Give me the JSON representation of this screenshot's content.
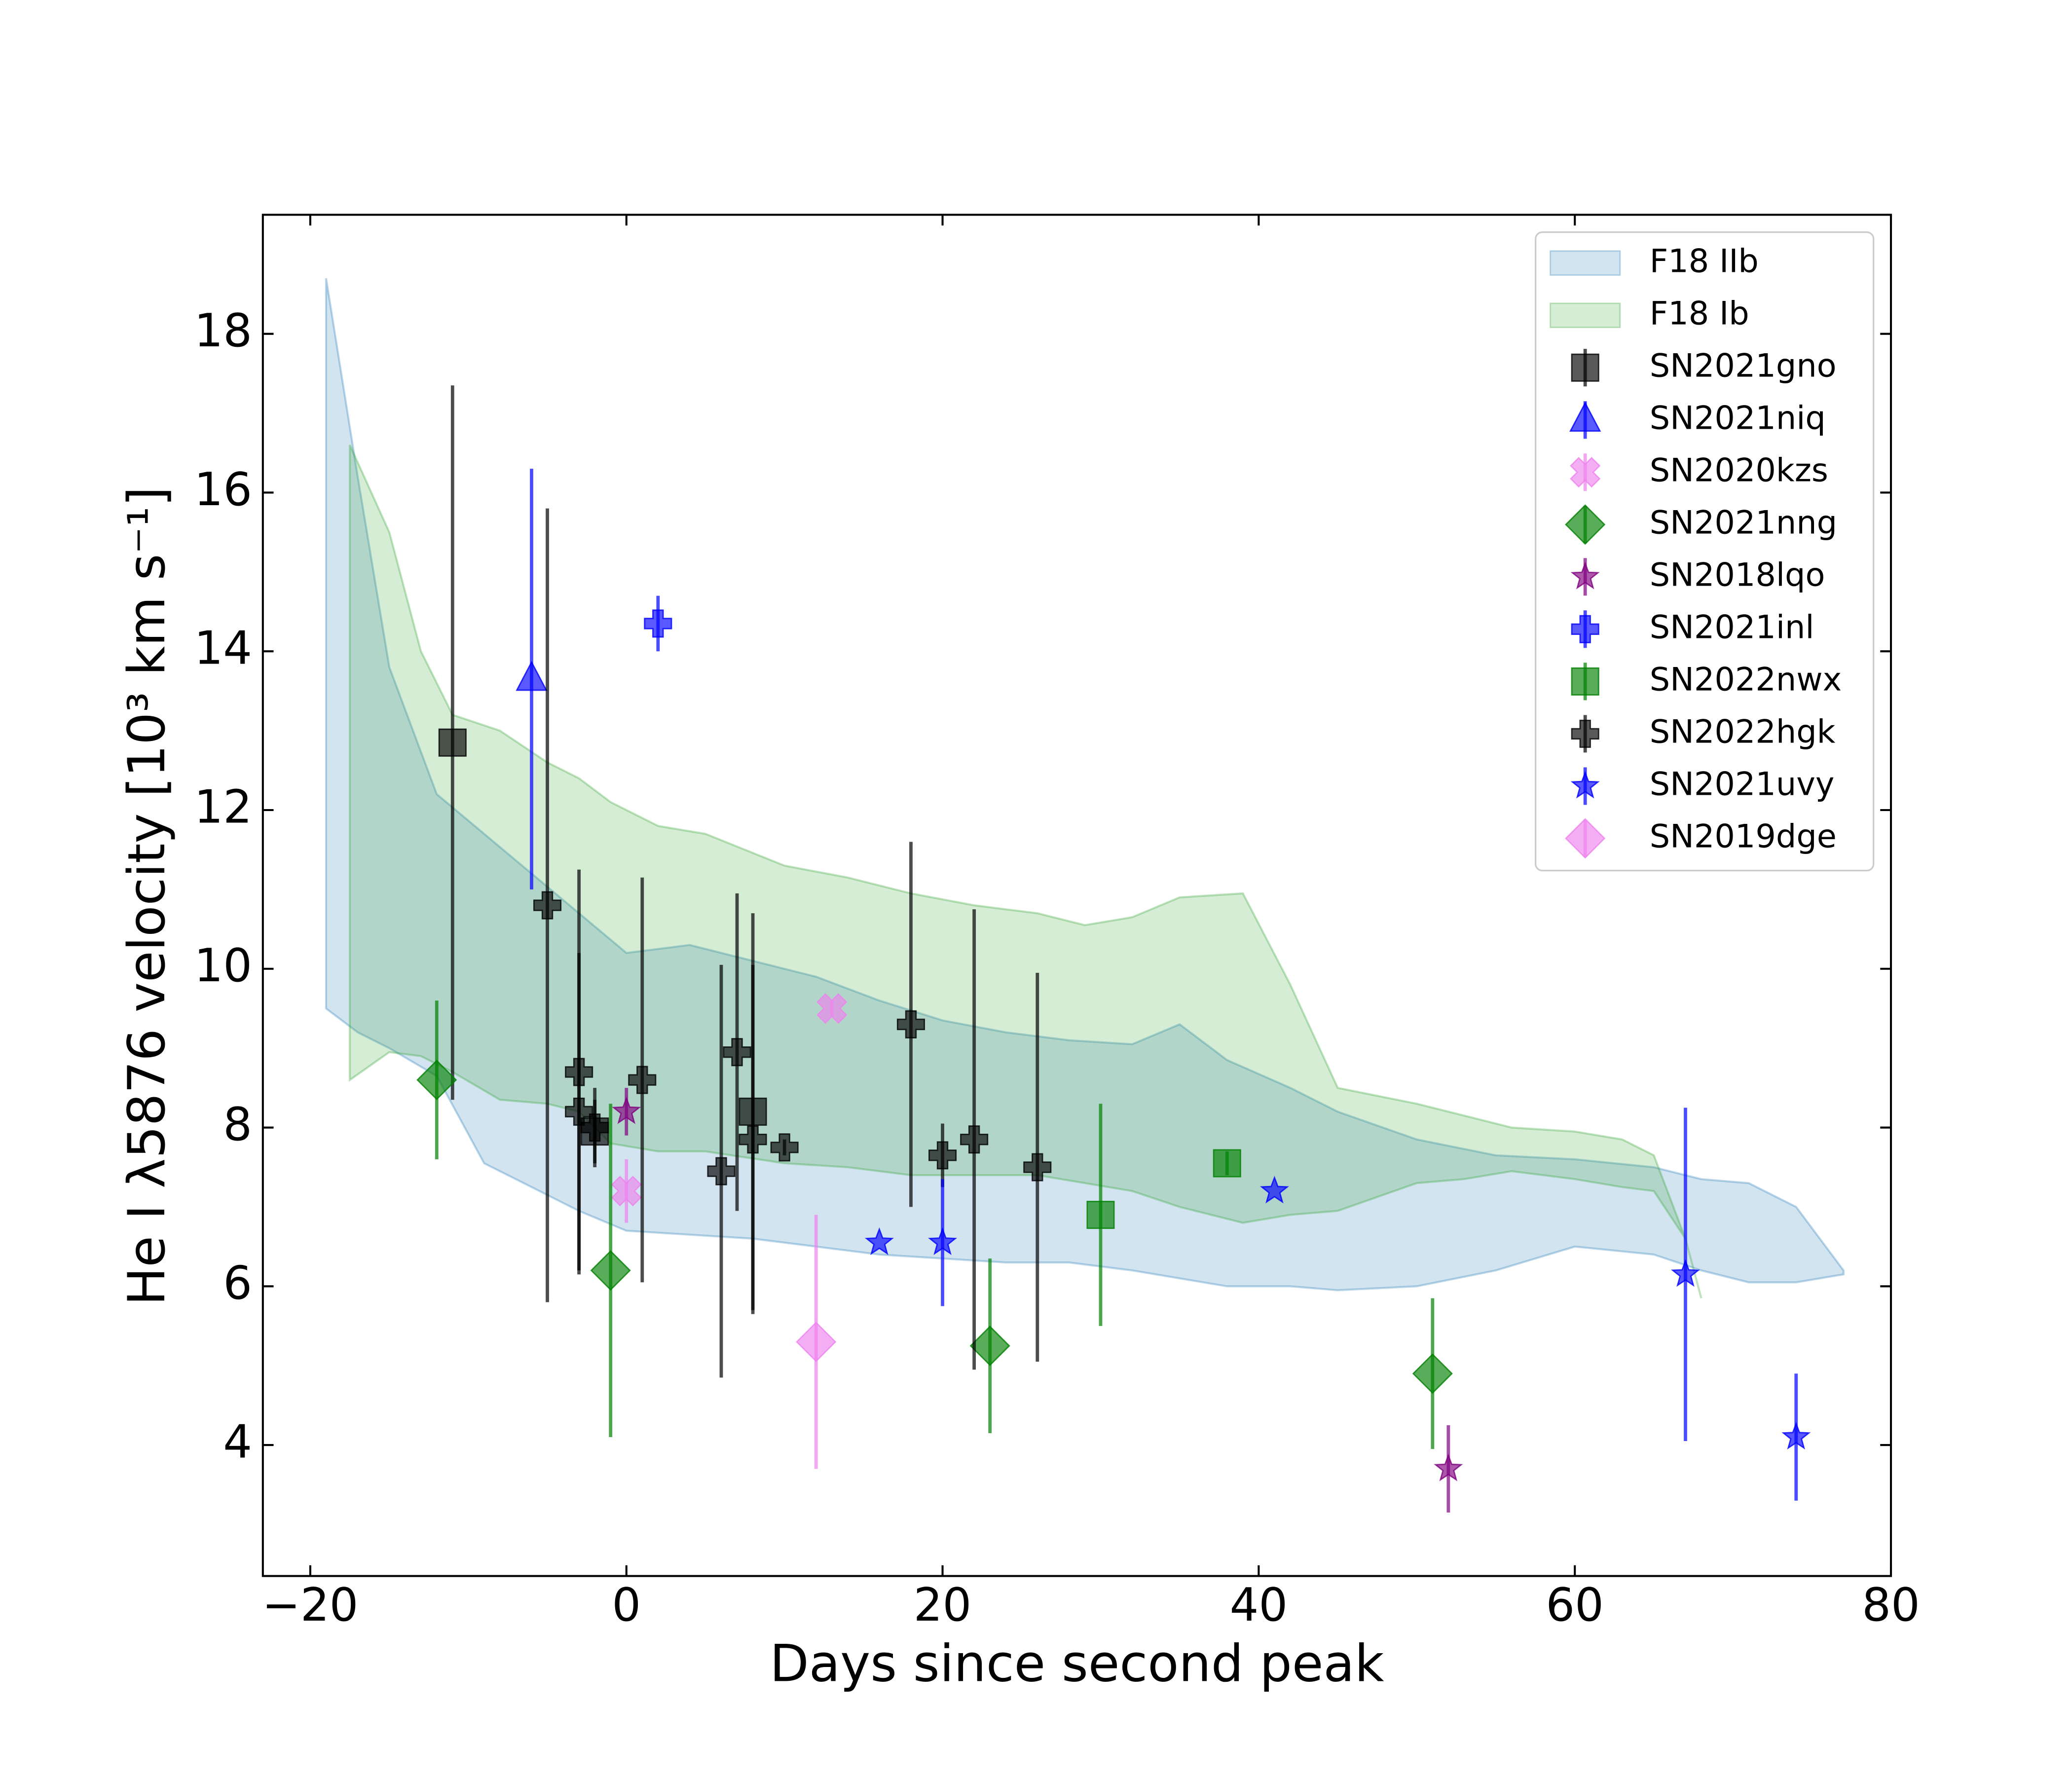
{
  "chart_data": {
    "type": "scatter",
    "xlabel": "Days since second peak",
    "ylabel": "He I λ5876 velocity [10³ km s⁻¹]",
    "xlim": [
      -23,
      80
    ],
    "ylim": [
      2.35,
      19.5
    ],
    "xticks": [
      {
        "value": -20,
        "label": "−20"
      },
      0,
      20,
      40,
      60,
      80
    ],
    "yticks": [
      4,
      6,
      8,
      10,
      12,
      14,
      16,
      18
    ],
    "legend": "upper right",
    "bands": [
      {
        "name": "F18 IIb",
        "color": "#1f77b4",
        "alpha": 0.2,
        "x": [
          -19,
          -17,
          -15,
          -12,
          -9,
          -6,
          -3,
          0,
          4,
          8,
          12,
          16,
          20,
          24,
          28,
          32,
          35,
          38,
          42,
          45,
          50,
          55,
          60,
          65,
          68,
          71,
          74,
          77
        ],
        "lower": [
          9.5,
          9.2,
          9.0,
          8.65,
          7.55,
          7.25,
          6.95,
          6.7,
          6.65,
          6.6,
          6.5,
          6.4,
          6.35,
          6.3,
          6.3,
          6.2,
          6.1,
          6.0,
          6.0,
          5.95,
          6.0,
          6.2,
          6.5,
          6.4,
          6.2,
          6.05,
          6.05,
          6.15
        ],
        "upper": [
          18.7,
          16.2,
          13.8,
          12.2,
          11.7,
          11.2,
          10.7,
          10.2,
          10.3,
          10.1,
          9.9,
          9.6,
          9.35,
          9.2,
          9.1,
          9.05,
          9.3,
          8.85,
          8.5,
          8.2,
          7.85,
          7.65,
          7.6,
          7.5,
          7.35,
          7.3,
          7.0,
          6.2
        ]
      },
      {
        "name": "F18 Ib",
        "color": "#2ca02c",
        "alpha": 0.2,
        "x": [
          -17.5,
          -15,
          -13,
          -11,
          -8,
          -5,
          -3,
          -1,
          2,
          5,
          10,
          14,
          18,
          22,
          26,
          29,
          32,
          35,
          39,
          42,
          45,
          50,
          53,
          56,
          60,
          63,
          65,
          67,
          68
        ],
        "lower": [
          8.6,
          8.95,
          8.9,
          8.7,
          8.35,
          8.3,
          8.2,
          7.8,
          7.7,
          7.7,
          7.55,
          7.5,
          7.4,
          7.4,
          7.4,
          7.3,
          7.2,
          7.0,
          6.8,
          6.9,
          6.95,
          7.3,
          7.35,
          7.45,
          7.35,
          7.25,
          7.2,
          6.6,
          5.85
        ],
        "upper": [
          16.6,
          15.5,
          14.0,
          13.2,
          13.0,
          12.6,
          12.4,
          12.1,
          11.8,
          11.7,
          11.3,
          11.15,
          10.95,
          10.8,
          10.7,
          10.55,
          10.65,
          10.9,
          10.95,
          9.8,
          8.5,
          8.3,
          8.15,
          8.0,
          7.95,
          7.85,
          7.65,
          6.6,
          5.85
        ]
      }
    ],
    "series": [
      {
        "name": "SN2021gno",
        "color": "#000000",
        "marker": "square",
        "x": [
          -11,
          -2,
          8
        ],
        "values": [
          12.85,
          7.95,
          8.2
        ],
        "yerr": [
          4.5,
          0.4,
          2.5
        ]
      },
      {
        "name": "SN2021niq",
        "color": "#0000ff",
        "marker": "triangle",
        "x": [
          -6
        ],
        "values": [
          13.65
        ],
        "yerr": [
          2.65
        ]
      },
      {
        "name": "SN2020kzs",
        "color": "#ee82ee",
        "marker": "x",
        "x": [
          0,
          13
        ],
        "values": [
          7.2,
          9.5
        ],
        "yerr": [
          0.4,
          0.1
        ]
      },
      {
        "name": "SN2021nng",
        "color": "#008000",
        "marker": "diamond",
        "x": [
          -12,
          -1,
          23,
          51
        ],
        "values": [
          8.6,
          6.2,
          5.25,
          4.9
        ],
        "yerr": [
          1.0,
          2.1,
          1.1,
          0.95
        ]
      },
      {
        "name": "SN2018lqo",
        "color": "#800080",
        "marker": "star",
        "x": [
          0,
          52
        ],
        "values": [
          8.2,
          3.7
        ],
        "yerr": [
          0.3,
          0.55
        ]
      },
      {
        "name": "SN2021inl",
        "color": "#0000ff",
        "marker": "plus",
        "x": [
          2
        ],
        "values": [
          14.35
        ],
        "yerr": [
          0.35
        ]
      },
      {
        "name": "SN2022nwx",
        "color": "#008000",
        "marker": "square",
        "x": [
          30,
          38
        ],
        "values": [
          6.9,
          7.55
        ],
        "yerr": [
          1.4,
          0.15
        ]
      },
      {
        "name": "SN2022hgk",
        "color": "#000000",
        "marker": "plus",
        "x": [
          -5,
          -3,
          -3,
          -2,
          1,
          6,
          7,
          8,
          10,
          18,
          20,
          22,
          26
        ],
        "values": [
          10.8,
          8.7,
          8.2,
          8.0,
          8.6,
          7.45,
          8.95,
          7.85,
          7.75,
          9.3,
          7.65,
          7.85,
          7.5
        ],
        "yerr": [
          5.0,
          2.55,
          2.0,
          0.5,
          2.55,
          2.6,
          2.0,
          2.2,
          0.1,
          2.3,
          0.4,
          2.9,
          2.45
        ]
      },
      {
        "name": "SN2021uvy",
        "color": "#0000ff",
        "marker": "star",
        "x": [
          16,
          20,
          41,
          67,
          74
        ],
        "values": [
          6.55,
          6.55,
          7.2,
          6.15,
          4.1
        ],
        "yerr": [
          0,
          0.8,
          0,
          2.1,
          0.8
        ]
      },
      {
        "name": "SN2019dge",
        "color": "#ee82ee",
        "marker": "diamond",
        "x": [
          12
        ],
        "values": [
          5.3
        ],
        "yerr": [
          1.6
        ]
      }
    ]
  }
}
